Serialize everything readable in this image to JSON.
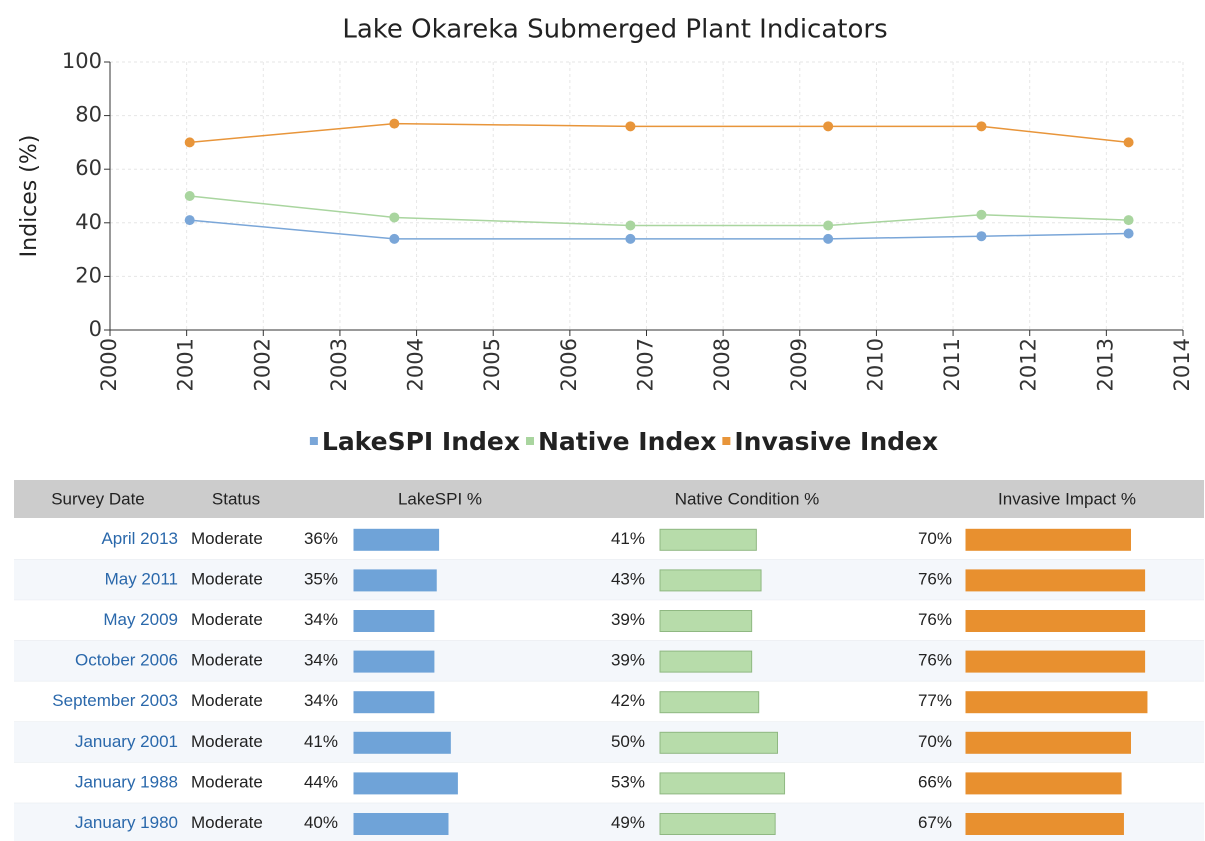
{
  "chart_data": {
    "type": "line",
    "title": "Lake Okareka Submerged Plant Indicators",
    "y_label": "Indices (%)",
    "x": [
      2001.04,
      2003.71,
      2006.79,
      2009.37,
      2011.37,
      2013.29
    ],
    "series": [
      {
        "name": "LakeSPI Index",
        "color": "#7aa6d8",
        "values": [
          41,
          34,
          34,
          34,
          35,
          36
        ]
      },
      {
        "name": "Native Index",
        "color": "#a9d59f",
        "values": [
          50,
          42,
          39,
          39,
          43,
          41
        ]
      },
      {
        "name": "Invasive Index",
        "color": "#e8953a",
        "values": [
          70,
          77,
          76,
          76,
          76,
          70
        ]
      }
    ],
    "xlim": [
      2000,
      2014
    ],
    "xticks": [
      2000,
      2001,
      2002,
      2003,
      2004,
      2005,
      2006,
      2007,
      2008,
      2009,
      2010,
      2011,
      2012,
      2013,
      2014
    ],
    "ylim": [
      0,
      100
    ],
    "yticks": [
      0,
      20,
      40,
      60,
      80,
      100
    ],
    "grid": true,
    "legend": "bottom"
  },
  "table": {
    "headers": [
      "Survey Date",
      "Status",
      "LakeSPI %",
      "Native Condition %",
      "Invasive Impact %"
    ],
    "rows": [
      {
        "date": "April 2013",
        "status": "Moderate",
        "lakespi": {
          "value": 36,
          "label": "36%"
        },
        "native": {
          "value": 41,
          "label": "41%"
        },
        "invasive": {
          "value": 70,
          "label": "70%"
        }
      },
      {
        "date": "May 2011",
        "status": "Moderate",
        "lakespi": {
          "value": 35,
          "label": "35%"
        },
        "native": {
          "value": 43,
          "label": "43%"
        },
        "invasive": {
          "value": 76,
          "label": "76%"
        }
      },
      {
        "date": "May 2009",
        "status": "Moderate",
        "lakespi": {
          "value": 34,
          "label": "34%"
        },
        "native": {
          "value": 39,
          "label": "39%"
        },
        "invasive": {
          "value": 76,
          "label": "76%"
        }
      },
      {
        "date": "October 2006",
        "status": "Moderate",
        "lakespi": {
          "value": 34,
          "label": "34%"
        },
        "native": {
          "value": 39,
          "label": "39%"
        },
        "invasive": {
          "value": 76,
          "label": "76%"
        }
      },
      {
        "date": "September 2003",
        "status": "Moderate",
        "lakespi": {
          "value": 34,
          "label": "34%"
        },
        "native": {
          "value": 42,
          "label": "42%"
        },
        "invasive": {
          "value": 77,
          "label": "77%"
        }
      },
      {
        "date": "January 2001",
        "status": "Moderate",
        "lakespi": {
          "value": 41,
          "label": "41%"
        },
        "native": {
          "value": 50,
          "label": "50%"
        },
        "invasive": {
          "value": 70,
          "label": "70%"
        }
      },
      {
        "date": "January 1988",
        "status": "Moderate",
        "lakespi": {
          "value": 44,
          "label": "44%"
        },
        "native": {
          "value": 53,
          "label": "53%"
        },
        "invasive": {
          "value": 66,
          "label": "66%"
        }
      },
      {
        "date": "January 1980",
        "status": "Moderate",
        "lakespi": {
          "value": 40,
          "label": "40%"
        },
        "native": {
          "value": 49,
          "label": "49%"
        },
        "invasive": {
          "value": 67,
          "label": "67%"
        }
      }
    ]
  }
}
